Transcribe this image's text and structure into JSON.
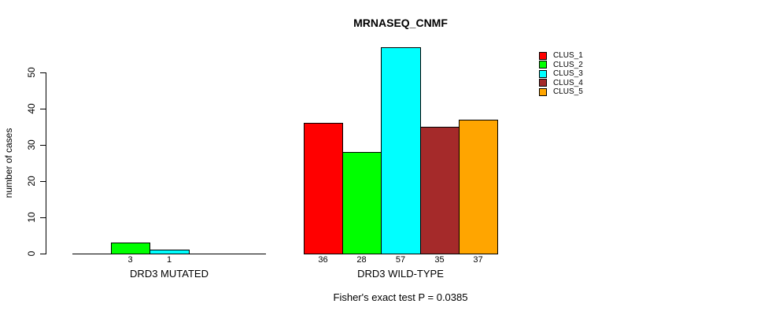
{
  "title": "MRNASEQ_CNMF",
  "subtitle": "Fisher's exact test P = 0.0385",
  "y_axis": {
    "label": "number of cases",
    "ticks": [
      0,
      10,
      20,
      30,
      40,
      50
    ]
  },
  "groups": [
    {
      "label": "DRD3 MUTATED"
    },
    {
      "label": "DRD3 WILD-TYPE"
    }
  ],
  "legend": [
    {
      "label": "CLUS_1",
      "color": "#FF0000"
    },
    {
      "label": "CLUS_2",
      "color": "#00FF00"
    },
    {
      "label": "CLUS_3",
      "color": "#00FFFF"
    },
    {
      "label": "CLUS_4",
      "color": "#A52A2A"
    },
    {
      "label": "CLUS_5",
      "color": "#FFA500"
    }
  ],
  "chart_data": {
    "type": "bar",
    "title": "MRNASEQ_CNMF",
    "ylabel": "number of cases",
    "ylim": [
      0,
      57
    ],
    "yticks": [
      0,
      10,
      20,
      30,
      40,
      50
    ],
    "grid": false,
    "legend_position": "top-right",
    "categories": [
      "DRD3 MUTATED",
      "DRD3 WILD-TYPE"
    ],
    "series": [
      {
        "name": "CLUS_1",
        "color": "#FF0000",
        "values": [
          0,
          36
        ]
      },
      {
        "name": "CLUS_2",
        "color": "#00FF00",
        "values": [
          3,
          28
        ]
      },
      {
        "name": "CLUS_3",
        "color": "#00FFFF",
        "values": [
          1,
          57
        ]
      },
      {
        "name": "CLUS_4",
        "color": "#A52A2A",
        "values": [
          0,
          35
        ]
      },
      {
        "name": "CLUS_5",
        "color": "#FFA500",
        "values": [
          0,
          37
        ]
      }
    ],
    "value_labels_shown_for_nonzero_bars": true,
    "annotation": "Fisher's exact test P = 0.0385"
  }
}
